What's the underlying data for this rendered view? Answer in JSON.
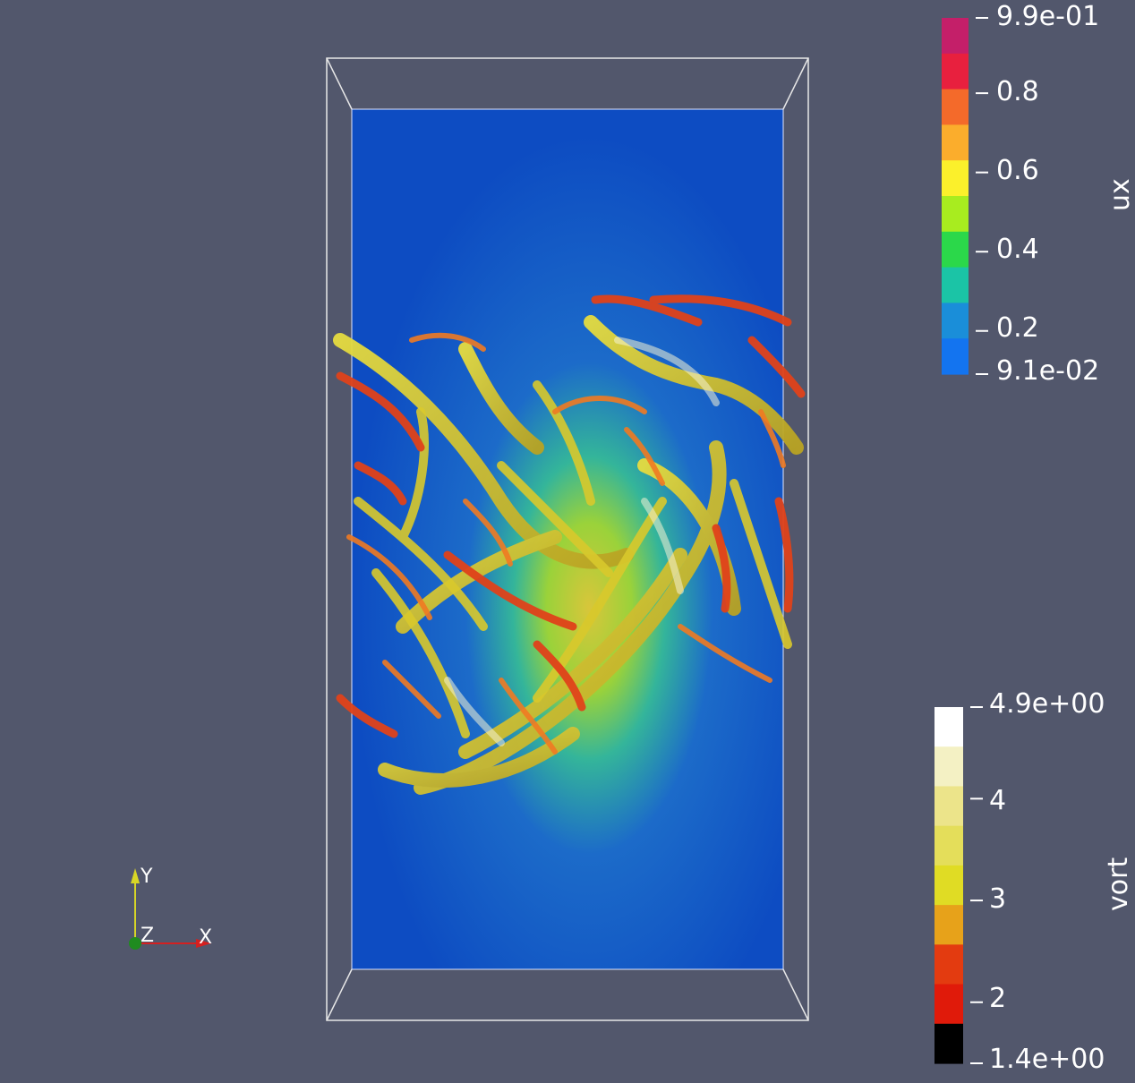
{
  "view": {
    "background_color": "#52576c"
  },
  "ux_scalar_bar": {
    "title": "ux",
    "colors": [
      "#c41f69",
      "#e8203e",
      "#f46a2a",
      "#fbad2c",
      "#fbf02b",
      "#a8ec1f",
      "#2bd84a",
      "#1bc4a6",
      "#1a8ed9",
      "#1374f0"
    ],
    "labels": [
      {
        "text": "9.9e-01",
        "value": 0.99
      },
      {
        "text": "0.8",
        "value": 0.8
      },
      {
        "text": "0.6",
        "value": 0.6
      },
      {
        "text": "0.4",
        "value": 0.4
      },
      {
        "text": "0.2",
        "value": 0.2
      },
      {
        "text": "9.1e-02",
        "value": 0.091
      }
    ]
  },
  "vort_scalar_bar": {
    "title": "vort",
    "colors": [
      "#ffffff",
      "#f4f1c4",
      "#ece48a",
      "#e4de5a",
      "#e0dc24",
      "#e7a21a",
      "#e33b10",
      "#e01a0a",
      "#000000"
    ],
    "labels": [
      {
        "text": "4.9e+00",
        "value": 4.9
      },
      {
        "text": "4",
        "value": 4
      },
      {
        "text": "3",
        "value": 3
      },
      {
        "text": "2",
        "value": 2
      },
      {
        "text": "1.4e+00",
        "value": 1.4
      }
    ]
  },
  "orientation_axes": {
    "y_label": "Y",
    "z_label": "Z",
    "x_label": "X",
    "y_color": "#d8d626",
    "x_color": "#d42020",
    "z_color": "#1f8b1f"
  }
}
